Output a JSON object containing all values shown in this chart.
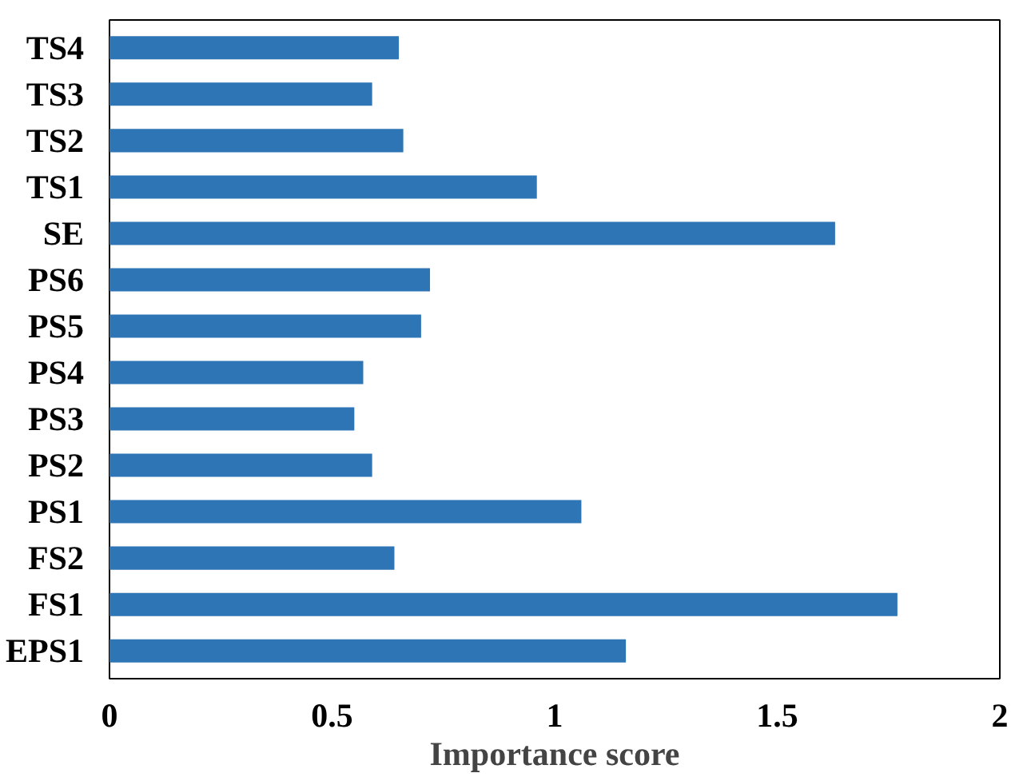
{
  "chart_data": {
    "type": "bar",
    "orientation": "horizontal",
    "xlabel": "Importance score",
    "categories": [
      "TS4",
      "TS3",
      "TS2",
      "TS1",
      "SE",
      "PS6",
      "PS5",
      "PS4",
      "PS3",
      "PS2",
      "PS1",
      "FS2",
      "FS1",
      "EPS1"
    ],
    "values": [
      0.65,
      0.59,
      0.66,
      0.96,
      1.63,
      0.72,
      0.7,
      0.57,
      0.55,
      0.59,
      1.06,
      0.64,
      1.77,
      1.16
    ],
    "color": "#2e75b6",
    "xlim": [
      0,
      2
    ],
    "xticks": [
      0,
      0.5,
      1,
      1.5,
      2
    ]
  }
}
